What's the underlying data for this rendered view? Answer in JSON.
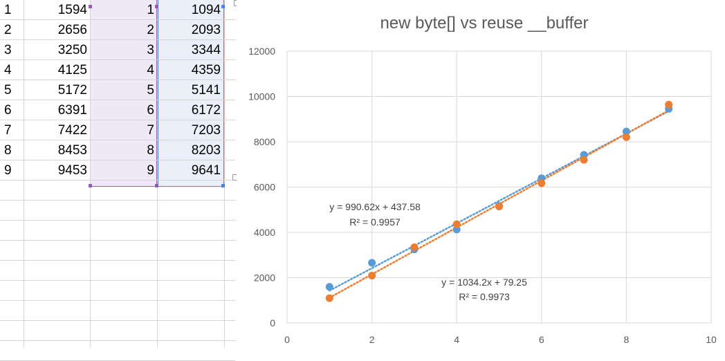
{
  "sheet": {
    "rows": [
      {
        "n": "1",
        "b": "1594",
        "c": "1",
        "d": "1094"
      },
      {
        "n": "2",
        "b": "2656",
        "c": "2",
        "d": "2093"
      },
      {
        "n": "3",
        "b": "3250",
        "c": "3",
        "d": "3344"
      },
      {
        "n": "4",
        "b": "4125",
        "c": "4",
        "d": "4359"
      },
      {
        "n": "5",
        "b": "5172",
        "c": "5",
        "d": "5141"
      },
      {
        "n": "6",
        "b": "6391",
        "c": "6",
        "d": "6172"
      },
      {
        "n": "7",
        "b": "7422",
        "c": "7",
        "d": "7203"
      },
      {
        "n": "8",
        "b": "8453",
        "c": "8",
        "d": "8203"
      },
      {
        "n": "9",
        "b": "9453",
        "c": "9",
        "d": "9641"
      }
    ],
    "selection_colors": {
      "col_c": "#8e5fb4",
      "col_d": "#4a86d9"
    }
  },
  "chart_data": {
    "type": "scatter",
    "title": "new byte[] vs reuse __buffer",
    "xlabel": "",
    "ylabel": "",
    "xlim": [
      0,
      10
    ],
    "ylim": [
      0,
      12000
    ],
    "xticks": [
      "0",
      "2",
      "4",
      "6",
      "8",
      "10"
    ],
    "yticks": [
      "0",
      "2000",
      "4000",
      "6000",
      "8000",
      "10000",
      "12000"
    ],
    "grid": true,
    "legend": "none",
    "series": [
      {
        "color": "#5b9bd5",
        "x": [
          1,
          2,
          3,
          4,
          5,
          6,
          7,
          8,
          9
        ],
        "y": [
          1594,
          2656,
          3250,
          4125,
          5172,
          6391,
          7422,
          8453,
          9453
        ],
        "trendline": {
          "type": "linear",
          "slope": 990.62,
          "intercept": 437.58,
          "style": "dotted"
        },
        "equation": "y = 990.62x + 437.58",
        "r2": "R² = 0.9957"
      },
      {
        "color": "#ed7d31",
        "x": [
          1,
          2,
          3,
          4,
          5,
          6,
          7,
          8,
          9
        ],
        "y": [
          1094,
          2093,
          3344,
          4359,
          5141,
          6172,
          7203,
          8203,
          9641
        ],
        "trendline": {
          "type": "linear",
          "slope": 1034.2,
          "intercept": 79.25,
          "style": "dotted"
        },
        "equation": "y = 1034.2x + 79.25",
        "r2": "R² = 0.9973"
      }
    ]
  }
}
